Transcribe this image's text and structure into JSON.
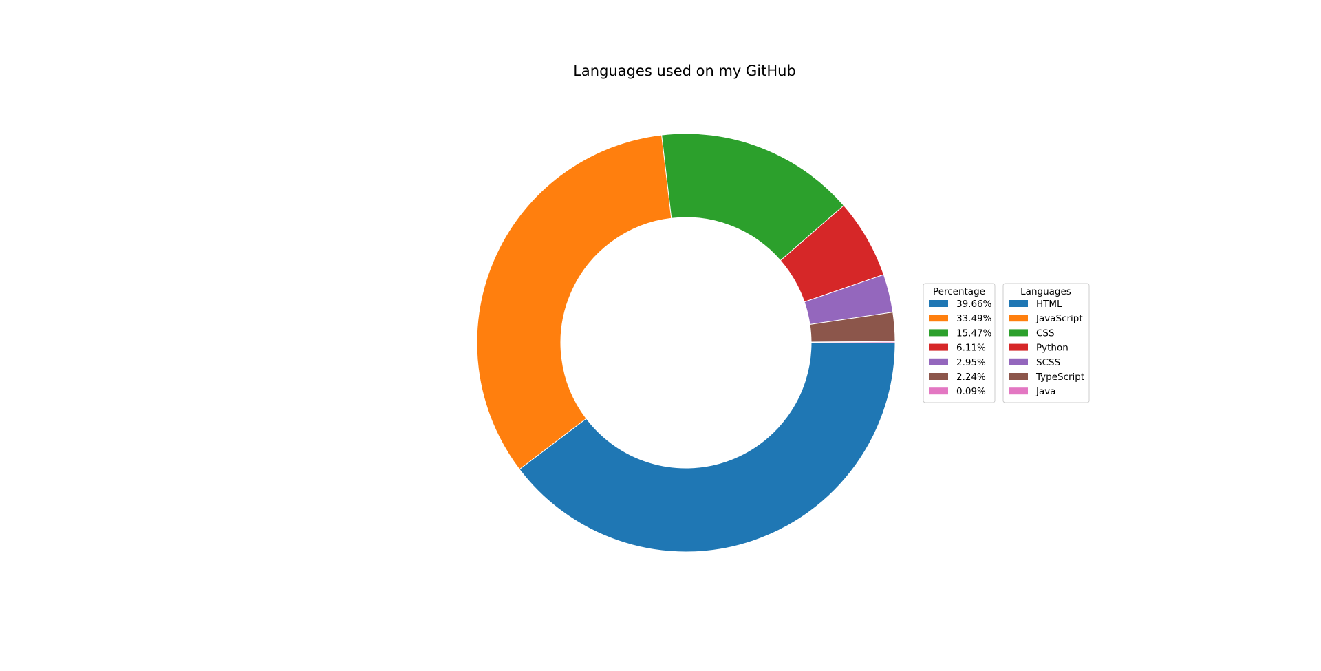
{
  "chart_data": {
    "type": "pie",
    "title": "Languages used on my GitHub",
    "donut": true,
    "start_angle_deg": 0,
    "direction": "clockwise",
    "categories": [
      "HTML",
      "JavaScript",
      "CSS",
      "Python",
      "SCSS",
      "TypeScript",
      "Java"
    ],
    "values": [
      39.66,
      33.49,
      15.47,
      6.11,
      2.95,
      2.24,
      0.09
    ],
    "percent_labels": [
      "39.66%",
      "33.49%",
      "15.47%",
      "6.11%",
      "2.95%",
      "2.24%",
      "0.09%"
    ],
    "colors": [
      "#1f77b4",
      "#ff7f0e",
      "#2ca02c",
      "#d62728",
      "#9467bd",
      "#8c564b",
      "#e377c2"
    ],
    "legends": [
      {
        "title": "Percentage",
        "entries": "percent_labels"
      },
      {
        "title": "Languages",
        "entries": "categories"
      }
    ],
    "legend_placement": "right"
  }
}
